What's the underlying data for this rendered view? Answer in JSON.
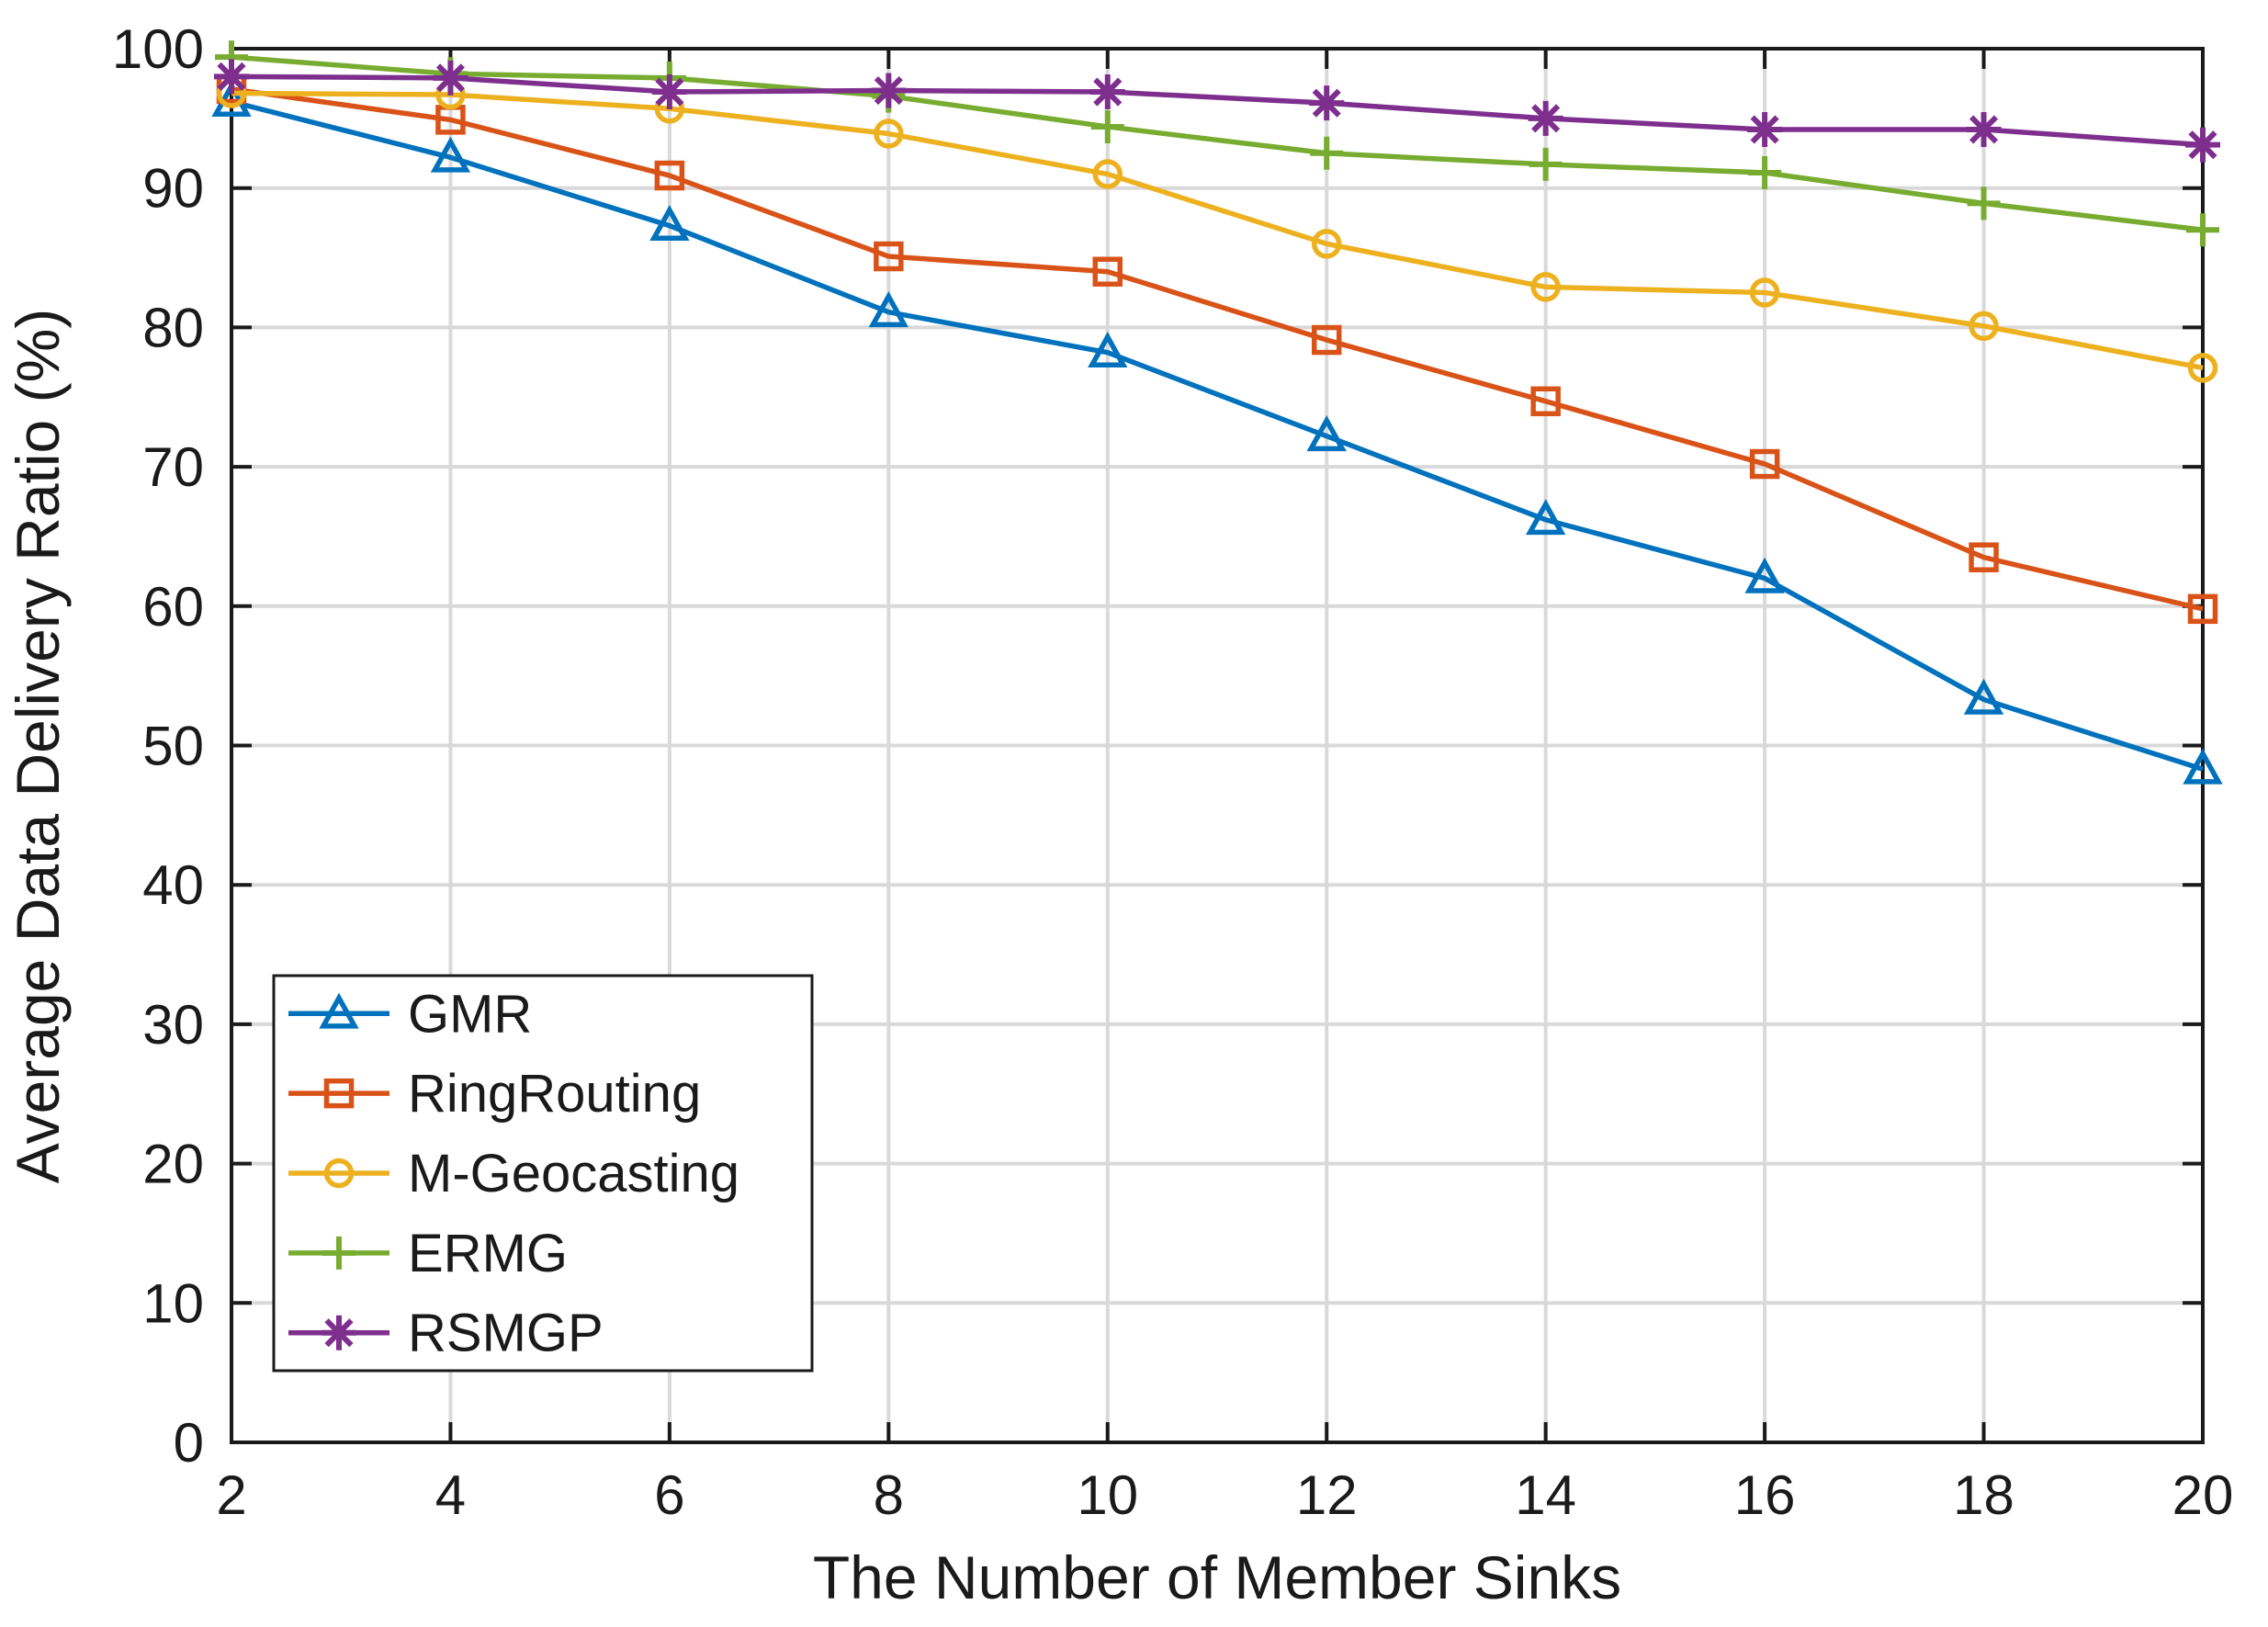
{
  "figure": {
    "background": "#ffffff",
    "axis_color": "#1a1a1a",
    "grid_color": "#d9d9d9"
  },
  "chart_data": {
    "type": "line",
    "title": "",
    "xlabel": "The Number of Member Sinks",
    "ylabel": "Average Data Delivery Ratio (%)",
    "xlim": [
      2,
      20
    ],
    "ylim": [
      0,
      100
    ],
    "xticks": [
      2,
      4,
      6,
      8,
      10,
      12,
      14,
      16,
      18,
      20
    ],
    "yticks": [
      0,
      10,
      20,
      30,
      40,
      50,
      60,
      70,
      80,
      90,
      100
    ],
    "grid": true,
    "legend_position": "inside-bottom-left",
    "x": [
      2,
      4,
      6,
      8,
      10,
      12,
      14,
      16,
      18,
      20
    ],
    "series": [
      {
        "name": "GMR",
        "color": "#0072BD",
        "marker": "triangle",
        "values": [
          96.2,
          92.2,
          87.3,
          81.1,
          78.2,
          72.2,
          66.2,
          62.0,
          53.3,
          48.3
        ]
      },
      {
        "name": "RingRouting",
        "color": "#D95319",
        "marker": "square",
        "values": [
          97.1,
          94.9,
          90.9,
          85.1,
          84.0,
          79.1,
          74.7,
          70.2,
          63.5,
          59.8
        ]
      },
      {
        "name": "M-Geocasting",
        "color": "#EDB120",
        "marker": "circle",
        "values": [
          96.8,
          96.7,
          95.7,
          93.9,
          91.0,
          86.0,
          82.9,
          82.5,
          80.1,
          77.1
        ]
      },
      {
        "name": "ERMG",
        "color": "#77AC30",
        "marker": "plus",
        "values": [
          99.4,
          98.2,
          97.9,
          96.6,
          94.4,
          92.5,
          91.7,
          91.1,
          88.9,
          87.0
        ]
      },
      {
        "name": "RSMGP",
        "color": "#7E2F8E",
        "marker": "asterisk",
        "values": [
          98.0,
          97.9,
          96.9,
          97.0,
          96.9,
          96.1,
          95.0,
          94.2,
          94.2,
          93.1
        ]
      }
    ]
  }
}
